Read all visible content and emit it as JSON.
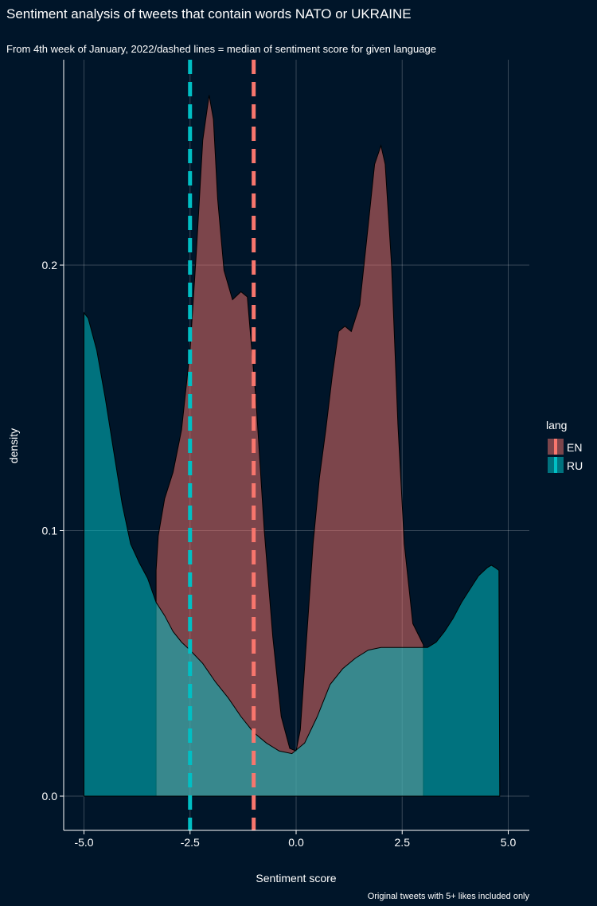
{
  "chart_data": {
    "type": "area",
    "title": "Sentiment analysis of tweets that contain words NATO or UKRAINE",
    "subtitle": "From 4th week of January, 2022/dashed lines = median of sentiment score for given language",
    "caption": "Original tweets with 5+ likes included only",
    "xlabel": "Sentiment score",
    "ylabel": "density",
    "xlim": [
      -5.0,
      5.0
    ],
    "ylim": [
      0.0,
      0.27
    ],
    "x_ticks": [
      "-5.0",
      "-2.5",
      "0.0",
      "2.5",
      "5.0"
    ],
    "y_ticks": [
      "0.0",
      "0.1",
      "0.2"
    ],
    "grid": true,
    "legend": {
      "title": "lang",
      "position": "right"
    },
    "series": [
      {
        "name": "EN",
        "color": "#F8766D",
        "median": -1.0,
        "points": [
          [
            -3.3,
            0.0
          ],
          [
            -3.3,
            0.085
          ],
          [
            -3.25,
            0.098
          ],
          [
            -3.1,
            0.112
          ],
          [
            -2.9,
            0.122
          ],
          [
            -2.7,
            0.138
          ],
          [
            -2.5,
            0.168
          ],
          [
            -2.35,
            0.205
          ],
          [
            -2.2,
            0.247
          ],
          [
            -2.05,
            0.264
          ],
          [
            -1.95,
            0.255
          ],
          [
            -1.85,
            0.225
          ],
          [
            -1.7,
            0.198
          ],
          [
            -1.5,
            0.187
          ],
          [
            -1.3,
            0.19
          ],
          [
            -1.15,
            0.188
          ],
          [
            -0.95,
            0.15
          ],
          [
            -0.75,
            0.1
          ],
          [
            -0.55,
            0.06
          ],
          [
            -0.35,
            0.03
          ],
          [
            -0.15,
            0.018
          ],
          [
            0.0,
            0.017
          ],
          [
            0.1,
            0.025
          ],
          [
            0.25,
            0.06
          ],
          [
            0.4,
            0.095
          ],
          [
            0.55,
            0.12
          ],
          [
            0.7,
            0.138
          ],
          [
            0.85,
            0.158
          ],
          [
            1.0,
            0.175
          ],
          [
            1.15,
            0.177
          ],
          [
            1.3,
            0.175
          ],
          [
            1.5,
            0.185
          ],
          [
            1.7,
            0.215
          ],
          [
            1.85,
            0.238
          ],
          [
            2.0,
            0.245
          ],
          [
            2.1,
            0.238
          ],
          [
            2.25,
            0.2
          ],
          [
            2.4,
            0.14
          ],
          [
            2.55,
            0.095
          ],
          [
            2.75,
            0.065
          ],
          [
            3.0,
            0.057
          ],
          [
            3.0,
            0.0
          ]
        ]
      },
      {
        "name": "RU",
        "color": "#00BFC4",
        "median": -2.5,
        "points": [
          [
            -5.0,
            0.0
          ],
          [
            -5.0,
            0.182
          ],
          [
            -4.9,
            0.18
          ],
          [
            -4.7,
            0.168
          ],
          [
            -4.5,
            0.15
          ],
          [
            -4.3,
            0.13
          ],
          [
            -4.1,
            0.11
          ],
          [
            -3.9,
            0.095
          ],
          [
            -3.7,
            0.088
          ],
          [
            -3.5,
            0.082
          ],
          [
            -3.3,
            0.073
          ],
          [
            -3.1,
            0.068
          ],
          [
            -2.9,
            0.062
          ],
          [
            -2.7,
            0.058
          ],
          [
            -2.5,
            0.055
          ],
          [
            -2.2,
            0.05
          ],
          [
            -1.9,
            0.043
          ],
          [
            -1.6,
            0.037
          ],
          [
            -1.3,
            0.03
          ],
          [
            -1.0,
            0.024
          ],
          [
            -0.7,
            0.02
          ],
          [
            -0.4,
            0.017
          ],
          [
            -0.1,
            0.016
          ],
          [
            0.2,
            0.02
          ],
          [
            0.5,
            0.03
          ],
          [
            0.8,
            0.042
          ],
          [
            1.1,
            0.048
          ],
          [
            1.4,
            0.052
          ],
          [
            1.7,
            0.055
          ],
          [
            2.0,
            0.056
          ],
          [
            2.3,
            0.056
          ],
          [
            2.6,
            0.056
          ],
          [
            2.9,
            0.056
          ],
          [
            3.1,
            0.056
          ],
          [
            3.3,
            0.058
          ],
          [
            3.5,
            0.062
          ],
          [
            3.7,
            0.067
          ],
          [
            3.9,
            0.073
          ],
          [
            4.1,
            0.078
          ],
          [
            4.3,
            0.083
          ],
          [
            4.5,
            0.086
          ],
          [
            4.6,
            0.087
          ],
          [
            4.7,
            0.086
          ],
          [
            4.78,
            0.085
          ],
          [
            4.8,
            0.0
          ]
        ]
      }
    ]
  }
}
